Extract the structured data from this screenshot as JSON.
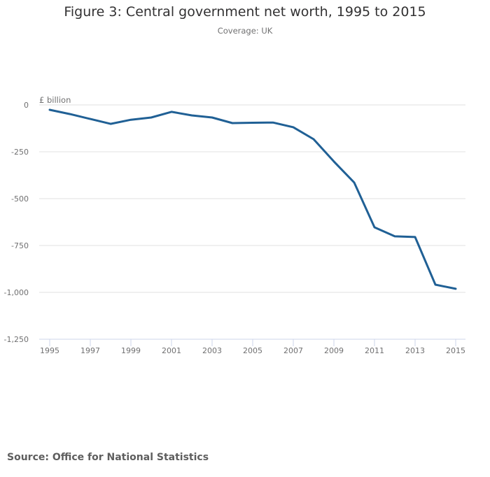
{
  "header": {
    "title": "Figure 3: Central government net worth, 1995 to 2015",
    "subtitle": "Coverage: UK"
  },
  "footer": {
    "source": "Source: Office for National Statistics"
  },
  "colors": {
    "series": "#206095",
    "grid": "#e0e0e0",
    "axis": "#ccd6eb",
    "tick_text": "#707071"
  },
  "chart_data": {
    "type": "line",
    "title": "Figure 3: Central government net worth, 1995 to 2015",
    "subtitle": "Coverage: UK",
    "xlabel": "",
    "ylabel": "£ billion",
    "x": [
      1995,
      1996,
      1997,
      1998,
      1999,
      2000,
      2001,
      2002,
      2003,
      2004,
      2005,
      2006,
      2007,
      2008,
      2009,
      2010,
      2011,
      2012,
      2013,
      2014,
      2015
    ],
    "series": [
      {
        "name": "Central government net worth",
        "values": [
          -26,
          -49,
          -75,
          -101,
          -79,
          -67,
          -37,
          -56,
          -67,
          -97,
          -95,
          -94,
          -119,
          -183,
          -302,
          -414,
          -653,
          -701,
          -705,
          -959,
          -981
        ]
      }
    ],
    "xlim": [
      1995,
      2015
    ],
    "ylim": [
      -1250,
      0
    ],
    "x_ticks": [
      1995,
      1997,
      1999,
      2001,
      2003,
      2005,
      2007,
      2009,
      2011,
      2013,
      2015
    ],
    "x_tick_labels": [
      "1995",
      "1997",
      "1999",
      "2001",
      "2003",
      "2005",
      "2007",
      "2009",
      "2011",
      "2013",
      "2015"
    ],
    "y_ticks": [
      0,
      -250,
      -500,
      -750,
      -1000,
      -1250
    ],
    "y_tick_labels": [
      "0",
      "-250",
      "-500",
      "-750",
      "-1,000",
      "-1,250"
    ],
    "grid": true,
    "legend": "none"
  }
}
